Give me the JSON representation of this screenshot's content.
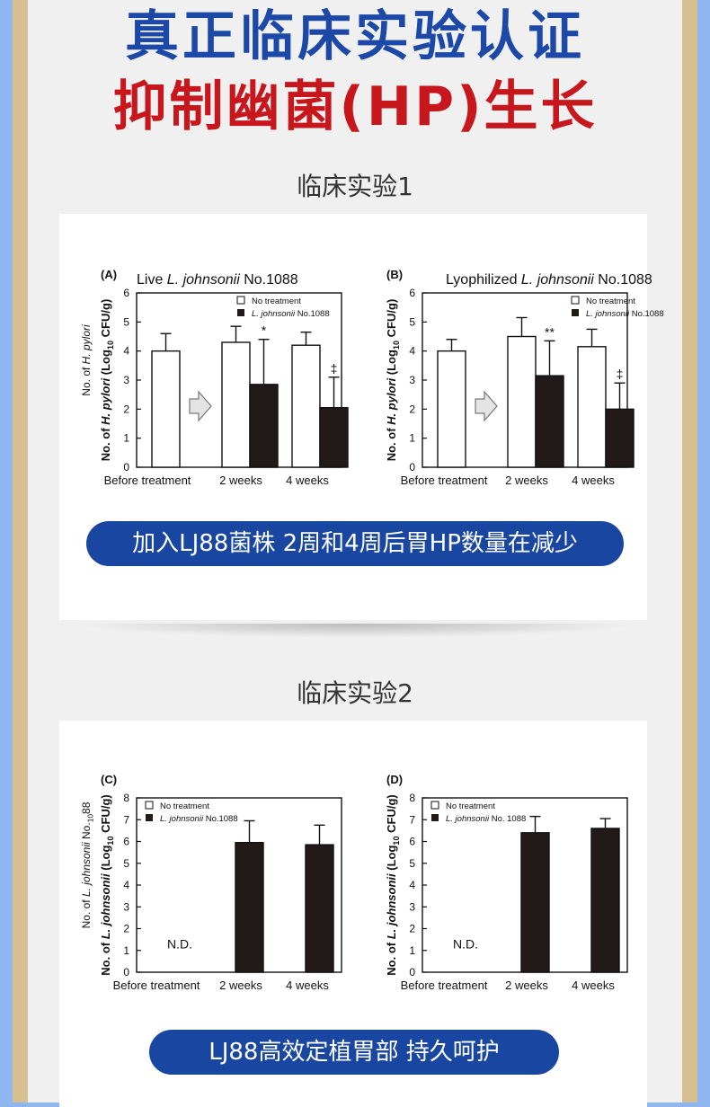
{
  "header": {
    "title_line1": "真正临床实验认证",
    "title_line2": "抑制幽菌(HP)生长"
  },
  "trial1": {
    "heading": "临床实验1",
    "banner": "加入LJ88菌株 2周和4周后胃HP数量在减少"
  },
  "trial2": {
    "heading": "临床实验2",
    "banner": "LJ88高效定植胃部 持久呵护"
  },
  "colors": {
    "title_blue": "#1c48a8",
    "title_red": "#c8161d",
    "banner_blue": "#1946a0",
    "bar_black": "#211a18"
  },
  "chart_data": [
    {
      "type": "bar",
      "panel": "(A)",
      "title_pre": "Live ",
      "title_italic": "L. johnsonii",
      "title_post": " No.1088",
      "ylabel_outer": "No. of H. pylori",
      "ylabel": "No. of H. pylori (Log10 CFU/g)",
      "ylim": [
        0,
        6
      ],
      "yticks": [
        "0",
        "1",
        "2",
        "3",
        "4",
        "5",
        "6"
      ],
      "categories": [
        "Before treatment",
        "2 weeks",
        "4 weeks"
      ],
      "legend": {
        "open": "No treatment",
        "filled_italic": "L. johnsonii",
        "filled_post": " No.1088"
      },
      "series": [
        {
          "name": "No treatment",
          "values": [
            4.0,
            4.3,
            4.2
          ],
          "errors": [
            0.6,
            0.55,
            0.45
          ]
        },
        {
          "name": "L. johnsonii No.1088",
          "values": [
            null,
            2.85,
            2.05
          ],
          "errors": [
            null,
            1.55,
            1.05
          ]
        }
      ],
      "annotations": [
        {
          "category": "2 weeks",
          "text": "*"
        },
        {
          "category": "4 weeks",
          "text": "‡"
        }
      ]
    },
    {
      "type": "bar",
      "panel": "(B)",
      "title_pre": "Lyophilized ",
      "title_italic": "L. johnsonii",
      "title_post": " No.1088",
      "ylabel": "No. of H. pylori (Log10 CFU/g)",
      "ylim": [
        0,
        6
      ],
      "yticks": [
        "0",
        "1",
        "2",
        "3",
        "4",
        "5",
        "6"
      ],
      "categories": [
        "Before treatment",
        "2 weeks",
        "4 weeks"
      ],
      "legend": {
        "open": "No treatment",
        "filled_italic": "L. johnsonii",
        "filled_post": " No.1088"
      },
      "series": [
        {
          "name": "No treatment",
          "values": [
            4.0,
            4.5,
            4.15
          ],
          "errors": [
            0.4,
            0.65,
            0.6
          ]
        },
        {
          "name": "L. johnsonii No.1088",
          "values": [
            null,
            3.15,
            2.0
          ],
          "errors": [
            null,
            1.2,
            0.9
          ]
        }
      ],
      "annotations": [
        {
          "category": "2 weeks",
          "text": "**"
        },
        {
          "category": "4 weeks",
          "text": "‡"
        }
      ]
    },
    {
      "type": "bar",
      "panel": "(C)",
      "ylabel_outer": "No. of L. johnsonii No.1088",
      "ylabel": "No. of L. johnsonii (Log10 CFU/g)",
      "ylim": [
        0,
        8
      ],
      "yticks": [
        "0",
        "1",
        "2",
        "3",
        "4",
        "5",
        "6",
        "7",
        "8"
      ],
      "categories": [
        "Before treatment",
        "2 weeks",
        "4 weeks"
      ],
      "legend": {
        "open": "No treatment",
        "filled_italic": "L. johnsonii",
        "filled_post": " No.1088"
      },
      "series": [
        {
          "name": "L. johnsonii No.1088",
          "values": [
            null,
            5.95,
            5.85
          ],
          "errors": [
            null,
            1.0,
            0.9
          ]
        }
      ],
      "nd_label": "N.D."
    },
    {
      "type": "bar",
      "panel": "(D)",
      "ylabel": "No. of L. johnsonii (Log10 CFU/g)",
      "ylim": [
        0,
        8
      ],
      "yticks": [
        "0",
        "1",
        "2",
        "3",
        "4",
        "5",
        "6",
        "7",
        "8"
      ],
      "categories": [
        "Before treatment",
        "2 weeks",
        "4 weeks"
      ],
      "legend": {
        "open": "No treatment",
        "filled_italic": "L. johnsonii",
        "filled_post": " No. 1088"
      },
      "series": [
        {
          "name": "L. johnsonii No. 1088",
          "values": [
            null,
            6.4,
            6.6
          ],
          "errors": [
            null,
            0.75,
            0.45
          ]
        }
      ],
      "nd_label": "N.D."
    }
  ]
}
